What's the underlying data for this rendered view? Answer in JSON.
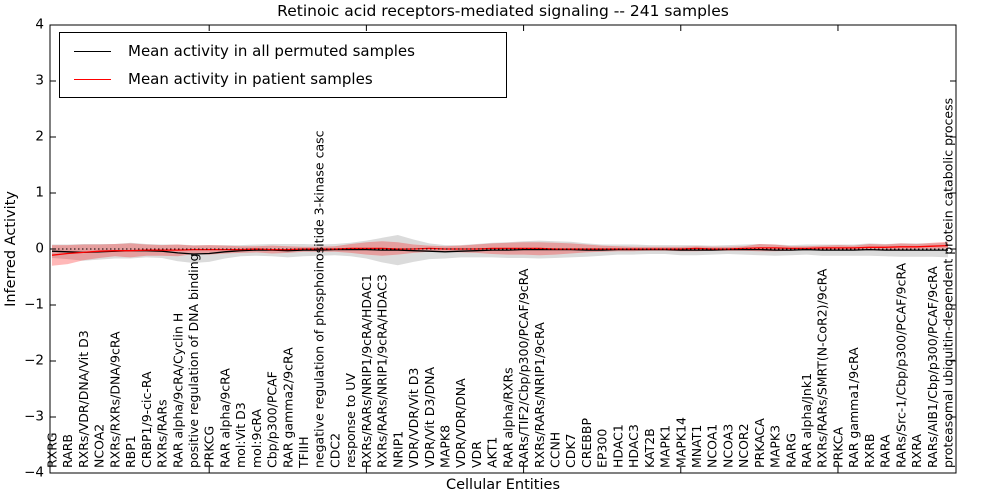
{
  "chart_data": {
    "type": "line",
    "title": "Retinoic acid receptors-mediated signaling -- 241 samples",
    "xlabel": "Cellular Entities",
    "ylabel": "Inferred Activity",
    "ylim": [
      -4,
      4
    ],
    "yticks": [
      4,
      3,
      2,
      1,
      0,
      -1,
      -2,
      -3,
      -4
    ],
    "grid": false,
    "legend_position": "upper left",
    "reference_line_y": 0,
    "categories": [
      "RXRG",
      "RARB",
      "RXRs/VDR/DNA/Vit D3",
      "NCOA2",
      "RXRs/RXRs/DNA/9cRA",
      "RBP1",
      "CRBP1/9-cic-RA",
      "RXRs/RARs",
      "RAR alpha/9cRA/Cyclin H",
      "positive regulation of DNA binding",
      "PRKCG",
      "RAR alpha/9cRA",
      "mol:Vit D3",
      "mol:9cRA",
      "Cbp/p300/PCAF",
      "RAR gamma2/9cRA",
      "TFIIH",
      "negative regulation of phosphoinositide 3-kinase casc",
      "CDC2",
      "response to UV",
      "RXRs/RARs/NRIP1/9cRA/HDAC1",
      "RXRs/RARs/NRIP1/9cRA/HDAC3",
      "NRIP1",
      "VDR/VDR/Vit D3",
      "VDR/Vit D3/DNA",
      "MAPK8",
      "VDR/VDR/DNA",
      "VDR",
      "AKT1",
      "RAR alpha/RXRs",
      "RARs/TIF2/Cbp/p300/PCAF/9cRA",
      "RXRs/RARs/NRIP1/9cRA",
      "CCNH",
      "CDK7",
      "CREBBP",
      "EP300",
      "HDAC1",
      "HDAC3",
      "KAT2B",
      "MAPK1",
      "MAPK14",
      "MNAT1",
      "NCOA1",
      "NCOA3",
      "NCOR2",
      "PRKACA",
      "MAPK3",
      "RARG",
      "RAR alpha/Jnk1",
      "RXRs/RARs/SMRT(N-CoR2)/9cRA",
      "PRKCA",
      "RAR gamma1/9cRA",
      "RXRB",
      "RARA",
      "RARs/Src-1/Cbp/p300/PCAF/9cRA",
      "RXRA",
      "RARs/AIB1/Cbp/p300/PCAF/9cRA",
      "proteasomal ubiquitin-dependent protein catabolic process"
    ],
    "series": [
      {
        "name": "Mean activity in all permuted samples",
        "color": "#000000",
        "band_color": "rgba(0,0,0,0.14)",
        "values": [
          -0.04,
          -0.05,
          -0.06,
          -0.05,
          -0.04,
          -0.03,
          -0.03,
          -0.04,
          -0.07,
          -0.09,
          -0.08,
          -0.05,
          -0.03,
          -0.02,
          -0.02,
          -0.03,
          -0.02,
          -0.02,
          -0.01,
          -0.01,
          -0.01,
          -0.02,
          -0.02,
          -0.03,
          -0.04,
          -0.05,
          -0.04,
          -0.03,
          -0.02,
          -0.02,
          -0.01,
          -0.01,
          -0.01,
          -0.01,
          -0.02,
          -0.02,
          -0.01,
          -0.01,
          -0.01,
          -0.01,
          -0.02,
          -0.02,
          -0.02,
          -0.01,
          -0.01,
          -0.01,
          -0.02,
          -0.02,
          -0.01,
          -0.02,
          -0.02,
          -0.02,
          -0.01,
          -0.02,
          -0.02,
          -0.02,
          -0.02,
          -0.02
        ],
        "band_upper": [
          0.08,
          0.08,
          0.09,
          0.09,
          0.09,
          0.11,
          0.09,
          0.08,
          0.08,
          0.07,
          0.07,
          0.07,
          0.07,
          0.08,
          0.09,
          0.09,
          0.09,
          0.08,
          0.09,
          0.11,
          0.15,
          0.2,
          0.25,
          0.17,
          0.1,
          0.07,
          0.07,
          0.09,
          0.11,
          0.12,
          0.14,
          0.15,
          0.14,
          0.13,
          0.1,
          0.08,
          0.08,
          0.08,
          0.07,
          0.07,
          0.07,
          0.07,
          0.06,
          0.07,
          0.08,
          0.09,
          0.08,
          0.07,
          0.08,
          0.08,
          0.08,
          0.08,
          0.1,
          0.09,
          0.1,
          0.1,
          0.1,
          0.11
        ],
        "band_lower": [
          -0.16,
          -0.18,
          -0.21,
          -0.19,
          -0.17,
          -0.17,
          -0.15,
          -0.16,
          -0.22,
          -0.25,
          -0.23,
          -0.17,
          -0.13,
          -0.12,
          -0.13,
          -0.15,
          -0.13,
          -0.12,
          -0.11,
          -0.13,
          -0.17,
          -0.24,
          -0.29,
          -0.23,
          -0.18,
          -0.17,
          -0.15,
          -0.15,
          -0.15,
          -0.16,
          -0.16,
          -0.17,
          -0.16,
          -0.15,
          -0.14,
          -0.12,
          -0.1,
          -0.1,
          -0.09,
          -0.09,
          -0.11,
          -0.11,
          -0.1,
          -0.09,
          -0.1,
          -0.11,
          -0.12,
          -0.11,
          -0.1,
          -0.12,
          -0.12,
          -0.12,
          -0.12,
          -0.13,
          -0.14,
          -0.14,
          -0.14,
          -0.15
        ]
      },
      {
        "name": "Mean activity in patient samples",
        "color": "#ff0000",
        "band_color": "rgba(255,0,0,0.28)",
        "values": [
          -0.11,
          -0.08,
          -0.06,
          -0.04,
          -0.03,
          -0.03,
          -0.02,
          -0.02,
          -0.02,
          -0.01,
          -0.01,
          -0.01,
          -0.01,
          0.0,
          -0.01,
          -0.01,
          0.0,
          0.0,
          0.0,
          0.01,
          0.01,
          0.01,
          0.0,
          0.0,
          0.01,
          0.0,
          0.0,
          0.0,
          0.01,
          0.01,
          0.01,
          0.01,
          0.0,
          0.0,
          0.0,
          0.0,
          0.0,
          0.0,
          0.0,
          0.0,
          0.0,
          0.01,
          0.0,
          0.0,
          0.01,
          0.02,
          0.02,
          0.01,
          0.01,
          0.02,
          0.02,
          0.02,
          0.03,
          0.03,
          0.04,
          0.04,
          0.05,
          0.06
        ],
        "band_upper": [
          0.07,
          0.07,
          0.08,
          0.08,
          0.09,
          0.1,
          0.08,
          0.07,
          0.08,
          0.06,
          0.07,
          0.06,
          0.05,
          0.05,
          0.06,
          0.05,
          0.04,
          0.04,
          0.05,
          0.09,
          0.12,
          0.14,
          0.12,
          0.08,
          0.06,
          0.05,
          0.06,
          0.08,
          0.1,
          0.11,
          0.12,
          0.12,
          0.11,
          0.1,
          0.08,
          0.06,
          0.05,
          0.04,
          0.04,
          0.04,
          0.04,
          0.05,
          0.04,
          0.04,
          0.05,
          0.09,
          0.08,
          0.05,
          0.05,
          0.06,
          0.07,
          0.06,
          0.09,
          0.08,
          0.1,
          0.09,
          0.11,
          0.13
        ],
        "band_lower": [
          -0.3,
          -0.27,
          -0.2,
          -0.16,
          -0.13,
          -0.15,
          -0.12,
          -0.12,
          -0.13,
          -0.09,
          -0.1,
          -0.08,
          -0.07,
          -0.06,
          -0.08,
          -0.07,
          -0.05,
          -0.05,
          -0.05,
          -0.07,
          -0.1,
          -0.12,
          -0.1,
          -0.07,
          -0.05,
          -0.05,
          -0.06,
          -0.07,
          -0.09,
          -0.1,
          -0.1,
          -0.11,
          -0.1,
          -0.08,
          -0.06,
          -0.05,
          -0.04,
          -0.04,
          -0.03,
          -0.03,
          -0.04,
          -0.04,
          -0.03,
          -0.03,
          -0.03,
          -0.04,
          -0.04,
          -0.03,
          -0.02,
          -0.02,
          -0.02,
          -0.02,
          -0.01,
          -0.01,
          -0.01,
          0.0,
          0.0,
          0.01
        ]
      }
    ]
  }
}
